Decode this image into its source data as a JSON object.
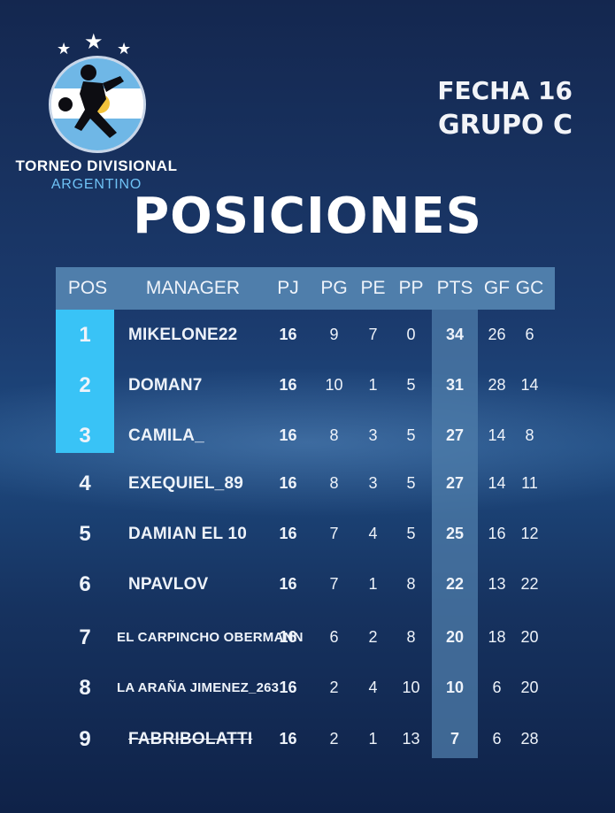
{
  "brand": {
    "line1": "TORNEO DIVISIONAL",
    "line2": "ARGENTINO"
  },
  "fecha": "FECHA 16",
  "grupo": "GRUPO C",
  "title": "POSICIONES",
  "colors": {
    "accent": "#39c3f6",
    "header_bg": "#4f7eab",
    "background": "#1b3b6e"
  },
  "table": {
    "headers": [
      "POS",
      "MANAGER",
      "PJ",
      "PG",
      "PE",
      "PP",
      "PTS",
      "GF",
      "GC"
    ],
    "rows": [
      {
        "pos": "1",
        "manager": "MIKELONE22",
        "pj": "16",
        "pg": "9",
        "pe": "7",
        "pp": "0",
        "pts": "34",
        "gf": "26",
        "gc": "6"
      },
      {
        "pos": "2",
        "manager": "DOMAN7",
        "pj": "16",
        "pg": "10",
        "pe": "1",
        "pp": "5",
        "pts": "31",
        "gf": "28",
        "gc": "14"
      },
      {
        "pos": "3",
        "manager": "CAMILA_",
        "pj": "16",
        "pg": "8",
        "pe": "3",
        "pp": "5",
        "pts": "27",
        "gf": "14",
        "gc": "8"
      },
      {
        "pos": "4",
        "manager": "EXEQUIEL_89",
        "pj": "16",
        "pg": "8",
        "pe": "3",
        "pp": "5",
        "pts": "27",
        "gf": "14",
        "gc": "11"
      },
      {
        "pos": "5",
        "manager": "DAMIAN EL 10",
        "pj": "16",
        "pg": "7",
        "pe": "4",
        "pp": "5",
        "pts": "25",
        "gf": "16",
        "gc": "12"
      },
      {
        "pos": "6",
        "manager": "NPAVLOV",
        "pj": "16",
        "pg": "7",
        "pe": "1",
        "pp": "8",
        "pts": "22",
        "gf": "13",
        "gc": "22"
      },
      {
        "pos": "7",
        "manager": "EL CARPINCHO OBERMANN",
        "pj": "16",
        "pg": "6",
        "pe": "2",
        "pp": "8",
        "pts": "20",
        "gf": "18",
        "gc": "20"
      },
      {
        "pos": "8",
        "manager": "LA ARAÑA JIMENEZ_263",
        "pj": "16",
        "pg": "2",
        "pe": "4",
        "pp": "10",
        "pts": "10",
        "gf": "6",
        "gc": "20"
      },
      {
        "pos": "9",
        "manager": "FABRIBOLATTI",
        "pj": "16",
        "pg": "2",
        "pe": "1",
        "pp": "13",
        "pts": "7",
        "gf": "6",
        "gc": "28"
      }
    ]
  }
}
